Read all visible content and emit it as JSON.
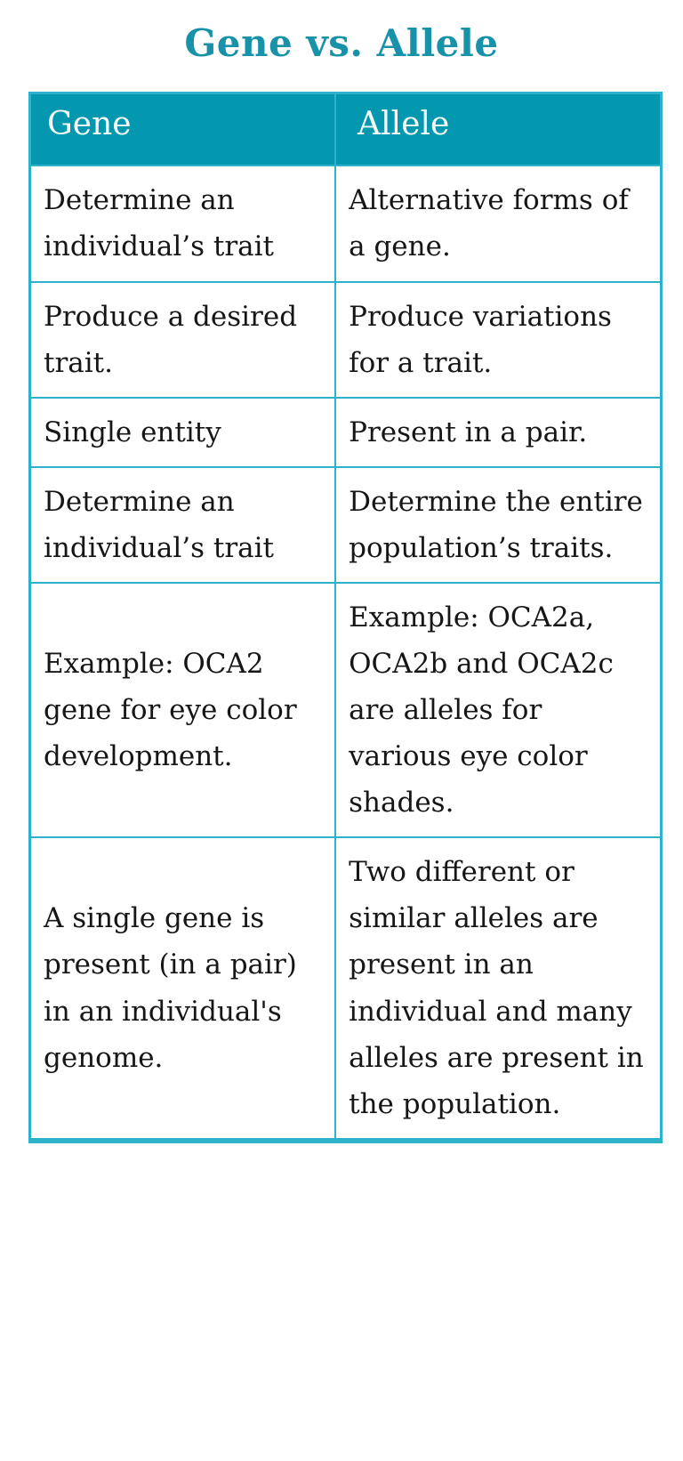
{
  "page": {
    "title": "Gene vs. Allele"
  },
  "colors": {
    "title_text": "#1792a9",
    "header_bg": "#0397b0",
    "header_text": "#f6fbfa",
    "border": "#2eb1cb",
    "body_text": "#161616"
  },
  "table": {
    "columns": [
      "Gene",
      "Allele"
    ],
    "rows": [
      {
        "gene": "Determine an individual’s trait",
        "allele": "Alternative forms of a gene."
      },
      {
        "gene": "Produce a desired trait.",
        "allele": "Produce variations for a trait."
      },
      {
        "gene": "Single entity",
        "allele": "Present in a pair."
      },
      {
        "gene": "Determine an individual’s trait",
        "allele": "Determine the entire population’s traits."
      },
      {
        "gene": "Example: OCA2 gene for eye color development.",
        "allele": "Example: OCA2a, OCA2b and OCA2c are alleles for various eye color shades."
      },
      {
        "gene": "A single gene is present (in a pair) in an individual's genome.",
        "allele": "Two different or similar alleles are present in an individual and many alleles are present in the population."
      }
    ]
  }
}
